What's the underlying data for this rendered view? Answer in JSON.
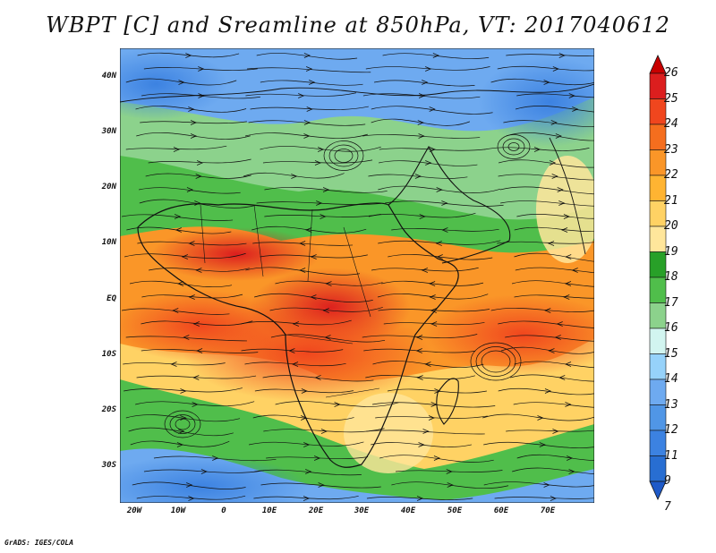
{
  "title": "WBPT [C] and Sreamline at 850hPa, VT: 2017040612",
  "footer": "GrADS: IGES/COLA",
  "map": {
    "lat_labels": [
      "40N",
      "30N",
      "20N",
      "10N",
      "EQ",
      "10S",
      "20S",
      "30S"
    ],
    "lon_labels": [
      "20W",
      "10W",
      "0",
      "10E",
      "20E",
      "30E",
      "40E",
      "50E",
      "60E",
      "70E"
    ]
  },
  "colorbar": {
    "labels": [
      "26",
      "25",
      "24",
      "23",
      "22",
      "21",
      "20",
      "19",
      "18",
      "17",
      "16",
      "15",
      "14",
      "13",
      "12",
      "11",
      "9",
      "7"
    ],
    "colors": [
      "#c80000",
      "#dc1e1e",
      "#f0461e",
      "#f56e1e",
      "#fa9628",
      "#ffb432",
      "#ffd264",
      "#ffe69b",
      "#28a028",
      "#50be4b",
      "#8cd28c",
      "#d2f5f0",
      "#96d2fa",
      "#6eaaf0",
      "#5096e6",
      "#3c82e1",
      "#286ed2",
      "#1e5ac8"
    ]
  }
}
